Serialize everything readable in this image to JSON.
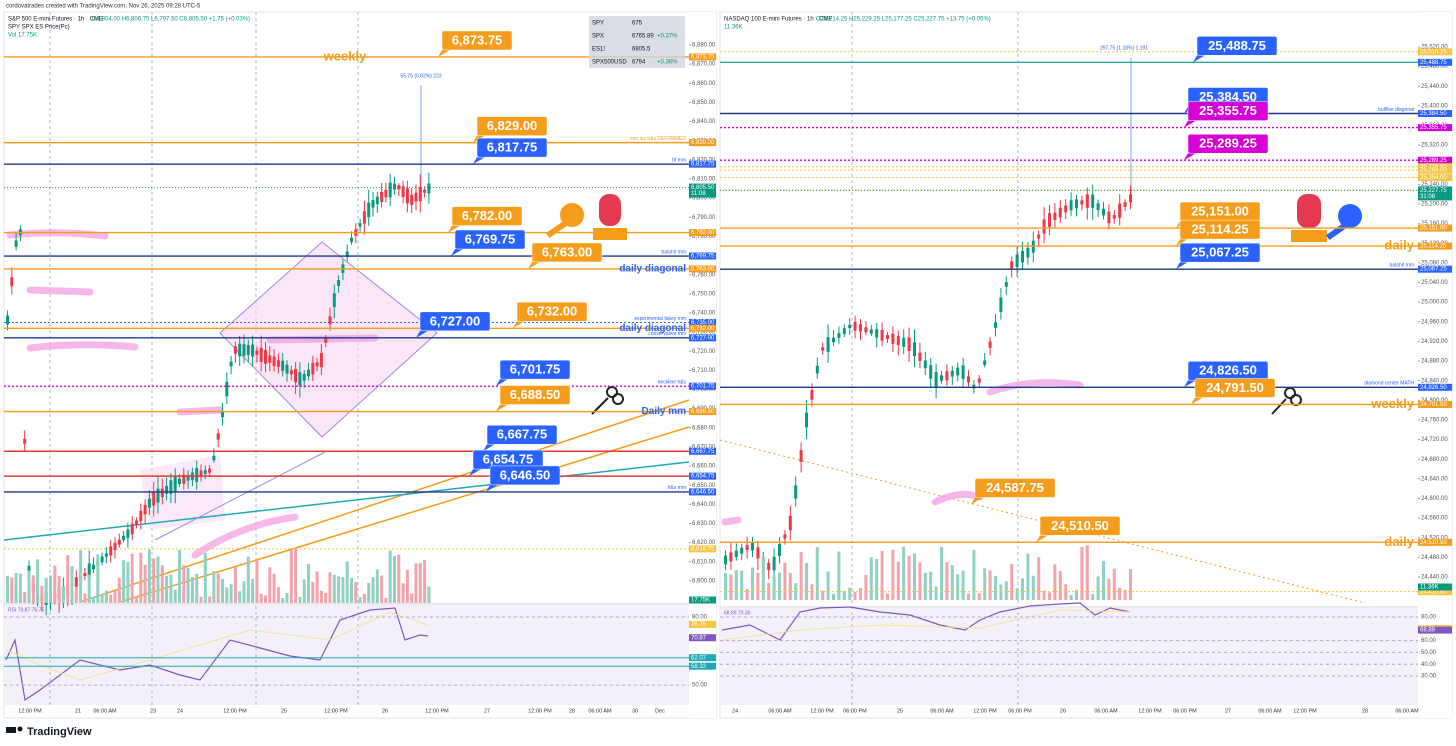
{
  "header": "cordovatrades created with TradingView.com, Nov 26, 2025 09:28 UTC-5",
  "footer": "TradingView",
  "left": {
    "title": "S&P 500 E-mini Futures · 1h · CME",
    "ohlc": "O6,804.00 H6,806.75 L6,797.50 C6,805.50 +1.75 (+0.03%)",
    "subtitle": "SPY SPX ES Price(Pc)",
    "vol": "Vol 17.75K",
    "vol_label": "17.75K",
    "measure": "55.75 (0.82%) 223",
    "watchlist": [
      [
        "SPY",
        "675",
        ""
      ],
      [
        "SPX",
        "6765.89",
        "+0.37%"
      ],
      [
        "ES1!",
        "6805.5",
        ""
      ],
      [
        "SPX500USD",
        "6794",
        "+0.36%"
      ]
    ],
    "last": {
      "price": 6805.5,
      "label": "6,805.50",
      "countdown": "11:08"
    },
    "levels": [
      {
        "price": 6873.75,
        "label": "6,873.75",
        "line": "#f59c1a",
        "tag": "#f59c1a",
        "callout": true,
        "note": "weekly",
        "note_style": "large"
      },
      {
        "price": 6829.0,
        "label": "6,829.00",
        "line": "#f59c1a",
        "tag": "#f59c1a",
        "callout": true,
        "note": "mm inv h&s  DEFORMED",
        "note_style": "small"
      },
      {
        "price": 6817.75,
        "label": "6,817.75",
        "line": "#1e3a8a",
        "tag": "#2962ff",
        "callout": true,
        "note": "bf mm",
        "note_style": "small"
      },
      {
        "price": 6782.0,
        "label": "6,782.00",
        "line": "#f59c1a",
        "tag": "#f59c1a",
        "callout": true
      },
      {
        "price": 6769.75,
        "label": "6,769.75",
        "line": "#1e3a8a",
        "tag": "#2962ff",
        "callout": true,
        "note": "batshit mm",
        "note_style": "small"
      },
      {
        "price": 6763.0,
        "label": "6,763.00",
        "line": "#f59c1a",
        "tag": "#f59c1a",
        "callout": true,
        "note": "daily diagonal",
        "note_style": "medium"
      },
      {
        "price": 6735.0,
        "label": "6,735.00",
        "line": "#2962ff",
        "tag": "#2962ff",
        "callout": false,
        "note": "experimental fakey mm",
        "note_style": "small"
      },
      {
        "price": 6732.0,
        "label": "6,732.00",
        "line": "#f59c1a",
        "tag": "#f59c1a",
        "callout": true,
        "note": "daily diagonal",
        "note_style": "medium"
      },
      {
        "price": 6727.0,
        "label": "6,727.00",
        "line": "#1e3a8a",
        "tag": "#2962ff",
        "callout": true,
        "note": "conservative mm",
        "note_style": "small"
      },
      {
        "price": 6701.75,
        "label": "6,701.75",
        "line": "#d500d5",
        "tag": "#2962ff",
        "callout": true,
        "note": "neckline h&s",
        "note_style": "small"
      },
      {
        "price": 6688.5,
        "label": "6,688.50",
        "line": "#f59c1a",
        "tag": "#f59c1a",
        "callout": true,
        "note": "Daily mm",
        "note_style": "medium"
      },
      {
        "price": 6667.75,
        "label": "6,667.75",
        "line": "#e53935",
        "tag": "#2962ff",
        "callout": true
      },
      {
        "price": 6654.75,
        "label": "6,654.75",
        "line": "#e53935",
        "tag": "#2962ff",
        "callout": true
      },
      {
        "price": 6646.5,
        "label": "6,646.50",
        "line": "#1e3a8a",
        "tag": "#2962ff",
        "callout": true,
        "note": "h&s mm",
        "note_style": "small"
      },
      {
        "price": 6616.75,
        "label": "6,616.75",
        "line": "#f5c542",
        "tag": "#f5c542",
        "callout": false
      }
    ],
    "axis_ticks": [
      {
        "value": 6880,
        "label": "6,880.00"
      },
      {
        "value": 6870,
        "label": "6,870.00"
      },
      {
        "value": 6860,
        "label": "6,860.00"
      },
      {
        "value": 6850,
        "label": "6,850.00"
      },
      {
        "value": 6840,
        "label": "6,840.00"
      },
      {
        "value": 6830,
        "label": "6,830.00"
      },
      {
        "value": 6820,
        "label": "6,820.00"
      },
      {
        "value": 6810,
        "label": "6,810.00"
      },
      {
        "value": 6800,
        "label": "6,800.00"
      },
      {
        "value": 6790,
        "label": "6,790.00"
      },
      {
        "value": 6780,
        "label": "6,780.00"
      },
      {
        "value": 6770,
        "label": "6,770.00"
      },
      {
        "value": 6760,
        "label": "6,760.00"
      },
      {
        "value": 6750,
        "label": "6,750.00"
      },
      {
        "value": 6740,
        "label": "6,740.00"
      },
      {
        "value": 6730,
        "label": "6,730.00"
      },
      {
        "value": 6720,
        "label": "6,720.00"
      },
      {
        "value": 6710,
        "label": "6,710.00"
      },
      {
        "value": 6700,
        "label": "6,700.00"
      },
      {
        "value": 6690,
        "label": "6,690.00"
      },
      {
        "value": 6680,
        "label": "6,680.00"
      },
      {
        "value": 6670,
        "label": "6,670.00"
      },
      {
        "value": 6660,
        "label": "6,660.00"
      },
      {
        "value": 6650,
        "label": "6,650.00"
      },
      {
        "value": 6640,
        "label": "6,640.00"
      },
      {
        "value": 6630,
        "label": "6,630.00"
      },
      {
        "value": 6620,
        "label": "6,620.00"
      },
      {
        "value": 6610,
        "label": "6,610.00"
      },
      {
        "value": 6600,
        "label": "6,600.00"
      }
    ],
    "time_axis": [
      "12:00 PM",
      "21",
      "06:00 AM",
      "23",
      "24",
      "12:00 PM",
      "25",
      "12:00 PM",
      "26",
      "12:00 PM",
      "27",
      "12:00 PM",
      "28",
      "06:00 AM",
      "30",
      "Dec"
    ],
    "rsi": {
      "title": "RSI 70.87 76.75",
      "ticks": [
        {
          "value": 80,
          "label": "80.00"
        },
        {
          "value": 50,
          "label": "50.00"
        }
      ],
      "tags": [
        {
          "value": 76.75,
          "label": "76.75",
          "color": "#f5c542"
        },
        {
          "value": 70.87,
          "label": "70.87",
          "color": "#7e57c2"
        },
        {
          "value": 62.07,
          "label": "62.07",
          "color": "#1fa9b5"
        },
        {
          "value": 58.33,
          "label": "58.33",
          "color": "#1fa9b5"
        }
      ]
    }
  },
  "right": {
    "title": "NASDAQ 100 E-mini Futures · 1h · CME",
    "ohlc": "O25,214.25 H25,229.25 L25,177.25 C25,227.75 +13.75 (+0.05%)",
    "vol": "11.36K",
    "vol_label": "11.36K",
    "measure": "297.75 (1.18%) 1,191",
    "last": {
      "price": 25227.75,
      "label": "25,227.75",
      "countdown": "31:08"
    },
    "levels": [
      {
        "price": 25510.25,
        "label": "25,510.25",
        "line": "#f5c542",
        "tag": "#f5c542",
        "callout": false
      },
      {
        "price": 25488.75,
        "label": "25,488.75",
        "line": "#1fa9b5",
        "tag": "#2962ff",
        "callout": true
      },
      {
        "price": 25384.5,
        "label": "25,384.50",
        "line": "#1e3a8a",
        "tag": "#2962ff",
        "callout": true,
        "note": "bullfise diagonal",
        "note_style": "small"
      },
      {
        "price": 25355.75,
        "label": "25,355.75",
        "line": "#d500d5",
        "tag": "#d500d5",
        "callout": true
      },
      {
        "price": 25289.25,
        "label": "25,289.25",
        "line": "#d500d5",
        "tag": "#d500d5",
        "callout": true
      },
      {
        "price": 25276.0,
        "label": "25,276.00",
        "line": "#f5c542",
        "tag": "#f5c542",
        "callout": false
      },
      {
        "price": 25269.0,
        "label": "25,269.00",
        "line": "#f5c542",
        "tag": "#f5c542",
        "callout": false
      },
      {
        "price": 25254.0,
        "label": "25,254.00",
        "line": "#f5c542",
        "tag": "#f5c542",
        "callout": false
      },
      {
        "price": 25228.25,
        "label": "25,228.25",
        "line": "#f5c542",
        "tag": "#f5c542",
        "callout": false
      },
      {
        "price": 25151.0,
        "label": "25,151.00",
        "line": "#f59c1a",
        "tag": "#f59c1a",
        "callout": true
      },
      {
        "price": 25114.25,
        "label": "25,114.25",
        "line": "#f59c1a",
        "tag": "#f59c1a",
        "callout": true,
        "note": "daily",
        "note_style": "large"
      },
      {
        "price": 25067.25,
        "label": "25,067.25",
        "line": "#1e3a8a",
        "tag": "#2962ff",
        "callout": true,
        "note": "batshit mm",
        "note_style": "small"
      },
      {
        "price": 24826.5,
        "label": "24,826.50",
        "line": "#1e3a8a",
        "tag": "#2962ff",
        "callout": true,
        "note": "diamond center MATH",
        "note_style": "small"
      },
      {
        "price": 24791.5,
        "label": "24,791.50",
        "line": "#f59c1a",
        "tag": "#f59c1a",
        "callout": true,
        "note": "weekly",
        "note_style": "large"
      },
      {
        "price": 24587.75,
        "label": "24,587.75",
        "line": null,
        "tag": "#f59c1a",
        "callout": true
      },
      {
        "price": 24510.5,
        "label": "24,510.50",
        "line": "#f59c1a",
        "tag": "#f59c1a",
        "callout": true,
        "note": "daily",
        "note_style": "large"
      },
      {
        "price": 24410.0,
        "label": "24,410.00",
        "line": "#f5c542",
        "tag": "#f5c542",
        "callout": false
      }
    ],
    "axis_ticks": [
      {
        "value": 25520,
        "label": "25,520.00"
      },
      {
        "value": 25480,
        "label": "25,480.00"
      },
      {
        "value": 25440,
        "label": "25,440.00"
      },
      {
        "value": 25400,
        "label": "25,400.00"
      },
      {
        "value": 25360,
        "label": "25,360.00"
      },
      {
        "value": 25320,
        "label": "25,320.00"
      },
      {
        "value": 25280,
        "label": "25,280.00"
      },
      {
        "value": 25240,
        "label": "25,240.00"
      },
      {
        "value": 25200,
        "label": "25,200.00"
      },
      {
        "value": 25160,
        "label": "25,160.00"
      },
      {
        "value": 25120,
        "label": "25,120.00"
      },
      {
        "value": 25080,
        "label": "25,080.00"
      },
      {
        "value": 25040,
        "label": "25,040.00"
      },
      {
        "value": 25000,
        "label": "25,000.00"
      },
      {
        "value": 24960,
        "label": "24,960.00"
      },
      {
        "value": 24920,
        "label": "24,920.00"
      },
      {
        "value": 24880,
        "label": "24,880.00"
      },
      {
        "value": 24840,
        "label": "24,840.00"
      },
      {
        "value": 24800,
        "label": "24,800.00"
      },
      {
        "value": 24760,
        "label": "24,760.00"
      },
      {
        "value": 24720,
        "label": "24,720.00"
      },
      {
        "value": 24680,
        "label": "24,680.00"
      },
      {
        "value": 24640,
        "label": "24,640.00"
      },
      {
        "value": 24600,
        "label": "24,600.00"
      },
      {
        "value": 24560,
        "label": "24,560.00"
      },
      {
        "value": 24520,
        "label": "24,520.00"
      },
      {
        "value": 24480,
        "label": "24,480.00"
      },
      {
        "value": 24440,
        "label": "24,440.00"
      }
    ],
    "time_axis": [
      "24",
      "06:00 AM",
      "12:00 PM",
      "06:00 PM",
      "25",
      "06:00 AM",
      "12:00 PM",
      "06:00 PM",
      "26",
      "06:00 AM",
      "12:00 PM",
      "06:00 PM",
      "27",
      "06:00 AM",
      "12:00 PM",
      "28",
      "06:00 AM"
    ],
    "rsi": {
      "title": "68.89  70.30",
      "ticks": [
        {
          "value": 80,
          "label": "80.00"
        },
        {
          "value": 60,
          "label": "60.00"
        },
        {
          "value": 50,
          "label": "50.00"
        },
        {
          "value": 40,
          "label": "40.00"
        },
        {
          "value": 30,
          "label": "30.00"
        }
      ],
      "tags": [
        {
          "value": 70.3,
          "label": "70.30",
          "color": "#f5c542"
        },
        {
          "value": 68.89,
          "label": "68.89",
          "color": "#7e57c2"
        }
      ]
    }
  }
}
